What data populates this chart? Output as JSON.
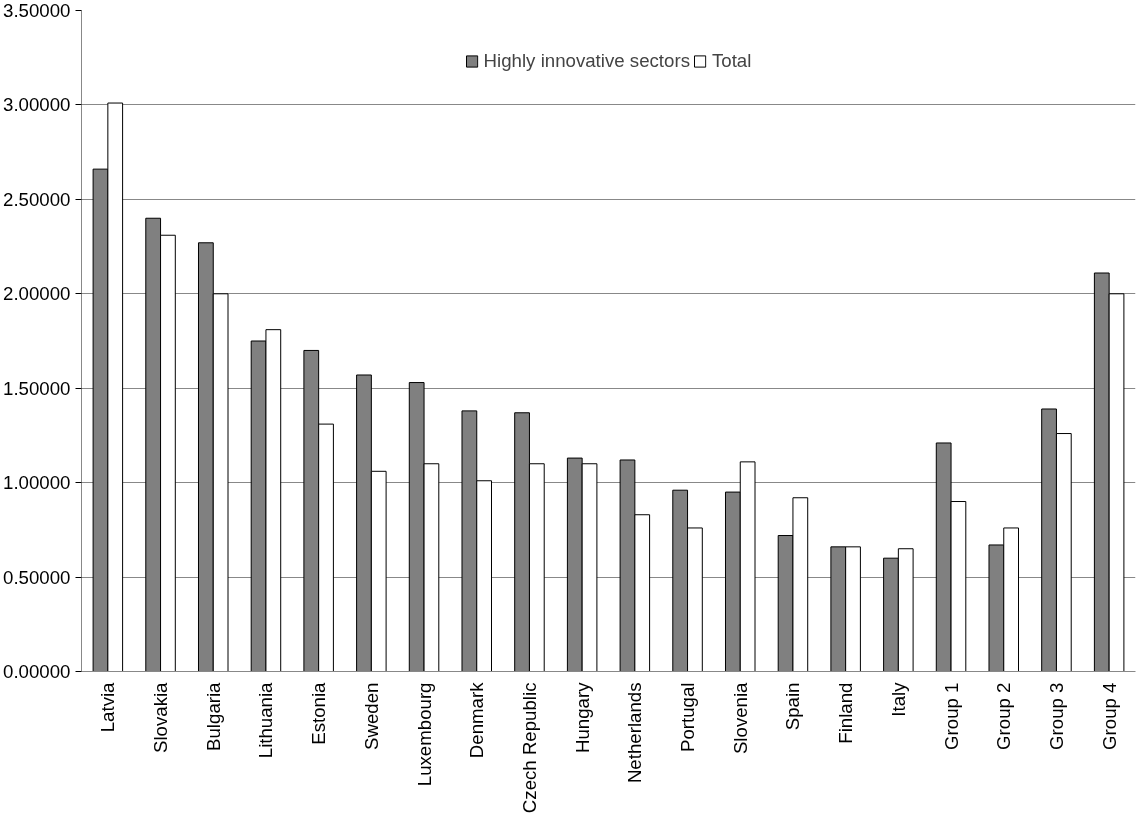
{
  "chart_data": {
    "type": "bar",
    "categories": [
      "Latvia",
      "Slovakia",
      "Bulgaria",
      "Lithuania",
      "Estonia",
      "Sweden",
      "Luxembourg",
      "Denmark",
      "Czech Republic",
      "Hungary",
      "Netherlands",
      "Portugal",
      "Slovenia",
      "Spain",
      "Finland",
      "Italy",
      "Group 1",
      "Group 2",
      "Group 3",
      "Group 4"
    ],
    "series": [
      {
        "name": "Highly innovative sectors",
        "color": "#808080",
        "values": [
          2.66,
          2.4,
          2.27,
          1.75,
          1.7,
          1.57,
          1.53,
          1.38,
          1.37,
          1.13,
          1.12,
          0.96,
          0.95,
          0.72,
          0.66,
          0.6,
          1.21,
          0.67,
          1.39,
          2.11
        ]
      },
      {
        "name": "Total",
        "color": "#ffffff",
        "values": [
          3.01,
          2.31,
          2.0,
          1.81,
          1.31,
          1.06,
          1.1,
          1.01,
          1.1,
          1.1,
          0.83,
          0.76,
          1.11,
          0.92,
          0.66,
          0.65,
          0.9,
          0.76,
          1.26,
          2.0
        ]
      }
    ],
    "ylim": [
      0,
      3.5
    ],
    "yticks": [
      {
        "value": 0,
        "label": "0.00000"
      },
      {
        "value": 0.5,
        "label": "0.50000"
      },
      {
        "value": 1,
        "label": "1.00000"
      },
      {
        "value": 1.5,
        "label": "1.50000"
      },
      {
        "value": 2,
        "label": "2.00000"
      },
      {
        "value": 2.5,
        "label": "2.50000"
      },
      {
        "value": 3,
        "label": "3.00000"
      },
      {
        "value": 3.5,
        "label": "3.50000"
      }
    ],
    "grid": "y",
    "legend": "top"
  }
}
